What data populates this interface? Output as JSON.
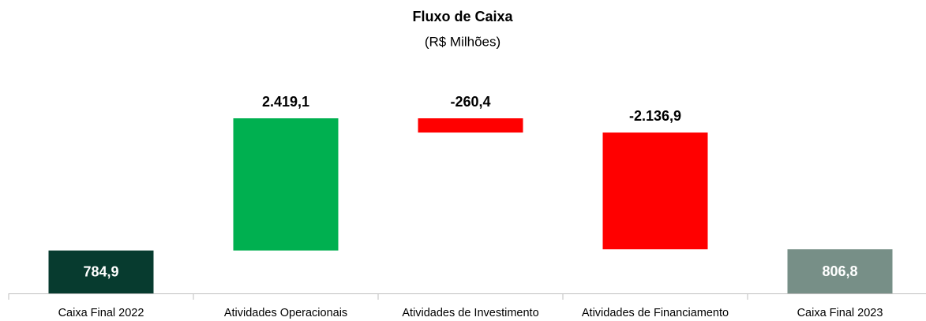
{
  "chart_data": {
    "type": "waterfall",
    "title": "Fluxo de Caixa",
    "subtitle": "(R$ Milhões)",
    "categories": [
      "Caixa Final 2022",
      "Atividades Operacionais",
      "Atividades de Investimento",
      "Atividades de Financiamento",
      "Caixa Final 2023"
    ],
    "values": [
      784.9,
      2419.1,
      -260.4,
      -2136.9,
      806.8
    ],
    "value_labels": [
      "784,9",
      "2.419,1",
      "-260,4",
      "-2.136,9",
      "806,8"
    ],
    "measures": [
      "total",
      "relative",
      "relative",
      "relative",
      "total"
    ],
    "colors": [
      "#073b2f",
      "#00b050",
      "#ff0000",
      "#ff0000",
      "#778f87"
    ]
  }
}
